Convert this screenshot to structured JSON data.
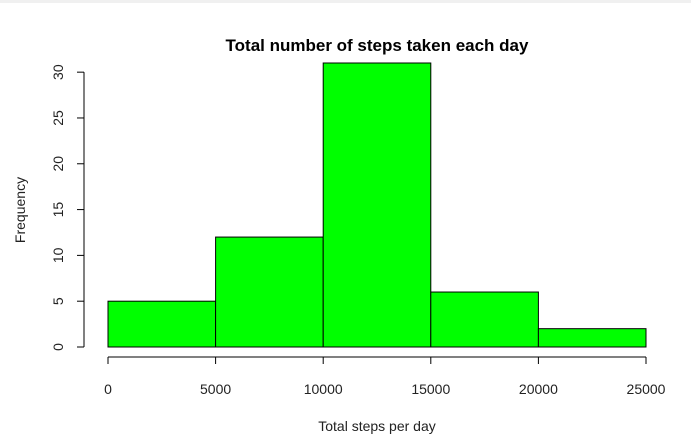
{
  "chart_data": {
    "type": "bar",
    "title": "Total number of steps taken each day",
    "xlabel": "Total steps per day",
    "ylabel": "Frequency",
    "bins": [
      {
        "from": 0,
        "to": 5000,
        "count": 5
      },
      {
        "from": 5000,
        "to": 10000,
        "count": 12
      },
      {
        "from": 10000,
        "to": 15000,
        "count": 31
      },
      {
        "from": 15000,
        "to": 20000,
        "count": 6
      },
      {
        "from": 20000,
        "to": 25000,
        "count": 2
      }
    ],
    "xlim": [
      0,
      25000
    ],
    "ylim": [
      0,
      31
    ],
    "x_ticks": [
      "0",
      "5000",
      "10000",
      "15000",
      "20000",
      "25000"
    ],
    "y_ticks": [
      "0",
      "5",
      "10",
      "15",
      "20",
      "25",
      "30"
    ],
    "bar_color": "#00ff00",
    "bar_border_color": "#000000",
    "grid": false,
    "legend": "none"
  }
}
